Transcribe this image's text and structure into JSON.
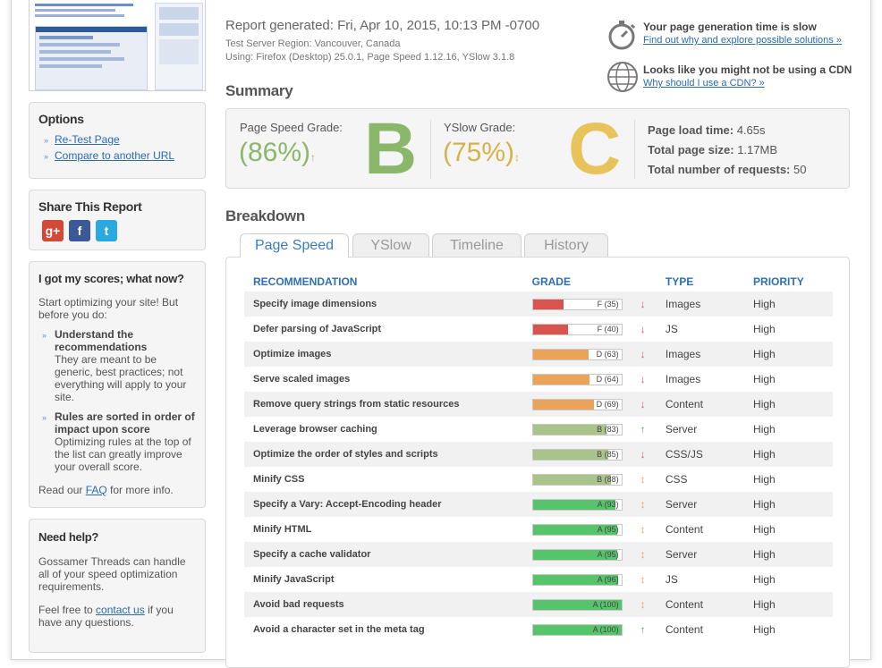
{
  "report": {
    "generated": "Report generated: Fri, Apr 10, 2015, 10:13 PM -0700",
    "region": "Test Server Region: Vancouver, Canada",
    "using": "Using: Firefox (Desktop) 25.0.1, Page Speed 1.12.16, YSlow 3.1.8"
  },
  "notices": [
    {
      "icon": "stopwatch-icon",
      "title": "Your page generation time is slow",
      "link": "Find out why and explore possible solutions »"
    },
    {
      "icon": "globe-icon",
      "title": "Looks like you might not be using a CDN",
      "link": "Why should I use a CDN? »"
    }
  ],
  "sidebar": {
    "options": {
      "title": "Options",
      "links": [
        "Re-Test Page",
        "Compare to another URL"
      ]
    },
    "share": {
      "title": "Share This Report",
      "icons": [
        "google-plus-icon",
        "facebook-icon",
        "twitter-icon"
      ]
    },
    "scores": {
      "title": "I got my scores; what now?",
      "intro": "Start optimizing your site! But before you do:",
      "tips": [
        {
          "head": "Understand the recommendations",
          "body": "They are meant to be generic, best practices; not everything will apply to your site."
        },
        {
          "head": "Rules are sorted in order of impact upon score",
          "body": "Optimizing rules at the top of the list can greatly improve your overall score."
        }
      ],
      "faq_pre": "Read our ",
      "faq_link": "FAQ",
      "faq_post": " for more info."
    },
    "help": {
      "title": "Need help?",
      "text": "Gossamer Threads can handle all of your speed optimization requirements.",
      "contact_pre": "Feel free to ",
      "contact_link": "contact us",
      "contact_post": " if you have any questions."
    }
  },
  "summary": {
    "title": "Summary",
    "pagespeed": {
      "label": "Page Speed Grade:",
      "score": "(86%)",
      "letter": "B",
      "color": "#8bb76a"
    },
    "yslow": {
      "label": "YSlow Grade:",
      "score": "(75%)",
      "letter": "C",
      "color": "#d6b34a"
    },
    "stats": [
      {
        "label": "Page load time:",
        "value": "4.65s"
      },
      {
        "label": "Total page size:",
        "value": "1.17MB"
      },
      {
        "label": "Total number of requests:",
        "value": "50"
      }
    ]
  },
  "breakdown": {
    "title": "Breakdown",
    "tabs": [
      "Page Speed",
      "YSlow",
      "Timeline",
      "History"
    ],
    "active_tab": "Page Speed",
    "columns": [
      "RECOMMENDATION",
      "GRADE",
      "TYPE",
      "PRIORITY"
    ],
    "rows": [
      {
        "name": "Specify image dimensions",
        "grade": "F (35)",
        "pct": 35,
        "color": "#d9534f",
        "trend": "down",
        "type": "Images",
        "priority": "High"
      },
      {
        "name": "Defer parsing of JavaScript",
        "grade": "F (40)",
        "pct": 40,
        "color": "#d9534f",
        "trend": "down",
        "type": "JS",
        "priority": "High"
      },
      {
        "name": "Optimize images",
        "grade": "D (63)",
        "pct": 63,
        "color": "#eba35a",
        "trend": "down",
        "type": "Images",
        "priority": "High"
      },
      {
        "name": "Serve scaled images",
        "grade": "D (64)",
        "pct": 64,
        "color": "#eba35a",
        "trend": "down",
        "type": "Images",
        "priority": "High"
      },
      {
        "name": "Remove query strings from static resources",
        "grade": "D (69)",
        "pct": 69,
        "color": "#eba35a",
        "trend": "down",
        "type": "Content",
        "priority": "High"
      },
      {
        "name": "Leverage browser caching",
        "grade": "B (83)",
        "pct": 83,
        "color": "#a9c48a",
        "trend": "up",
        "type": "Server",
        "priority": "High"
      },
      {
        "name": "Optimize the order of styles and scripts",
        "grade": "B (85)",
        "pct": 85,
        "color": "#a9c48a",
        "trend": "down",
        "type": "CSS/JS",
        "priority": "High"
      },
      {
        "name": "Minify CSS",
        "grade": "B (88)",
        "pct": 88,
        "color": "#a9c48a",
        "trend": "neutral",
        "type": "CSS",
        "priority": "High"
      },
      {
        "name": "Specify a Vary: Accept-Encoding header",
        "grade": "A (93)",
        "pct": 93,
        "color": "#55c46a",
        "trend": "neutral",
        "type": "Server",
        "priority": "High"
      },
      {
        "name": "Minify HTML",
        "grade": "A (95)",
        "pct": 95,
        "color": "#55c46a",
        "trend": "neutral",
        "type": "Content",
        "priority": "High"
      },
      {
        "name": "Specify a cache validator",
        "grade": "A (95)",
        "pct": 95,
        "color": "#55c46a",
        "trend": "neutral",
        "type": "Server",
        "priority": "High"
      },
      {
        "name": "Minify JavaScript",
        "grade": "A (96)",
        "pct": 96,
        "color": "#55c46a",
        "trend": "neutral",
        "type": "JS",
        "priority": "High"
      },
      {
        "name": "Avoid bad requests",
        "grade": "A (100)",
        "pct": 100,
        "color": "#55c46a",
        "trend": "neutral",
        "type": "Content",
        "priority": "High"
      },
      {
        "name": "Avoid a character set in the meta tag",
        "grade": "A (100)",
        "pct": 100,
        "color": "#55c46a",
        "trend": "up",
        "type": "Content",
        "priority": "High"
      }
    ]
  }
}
